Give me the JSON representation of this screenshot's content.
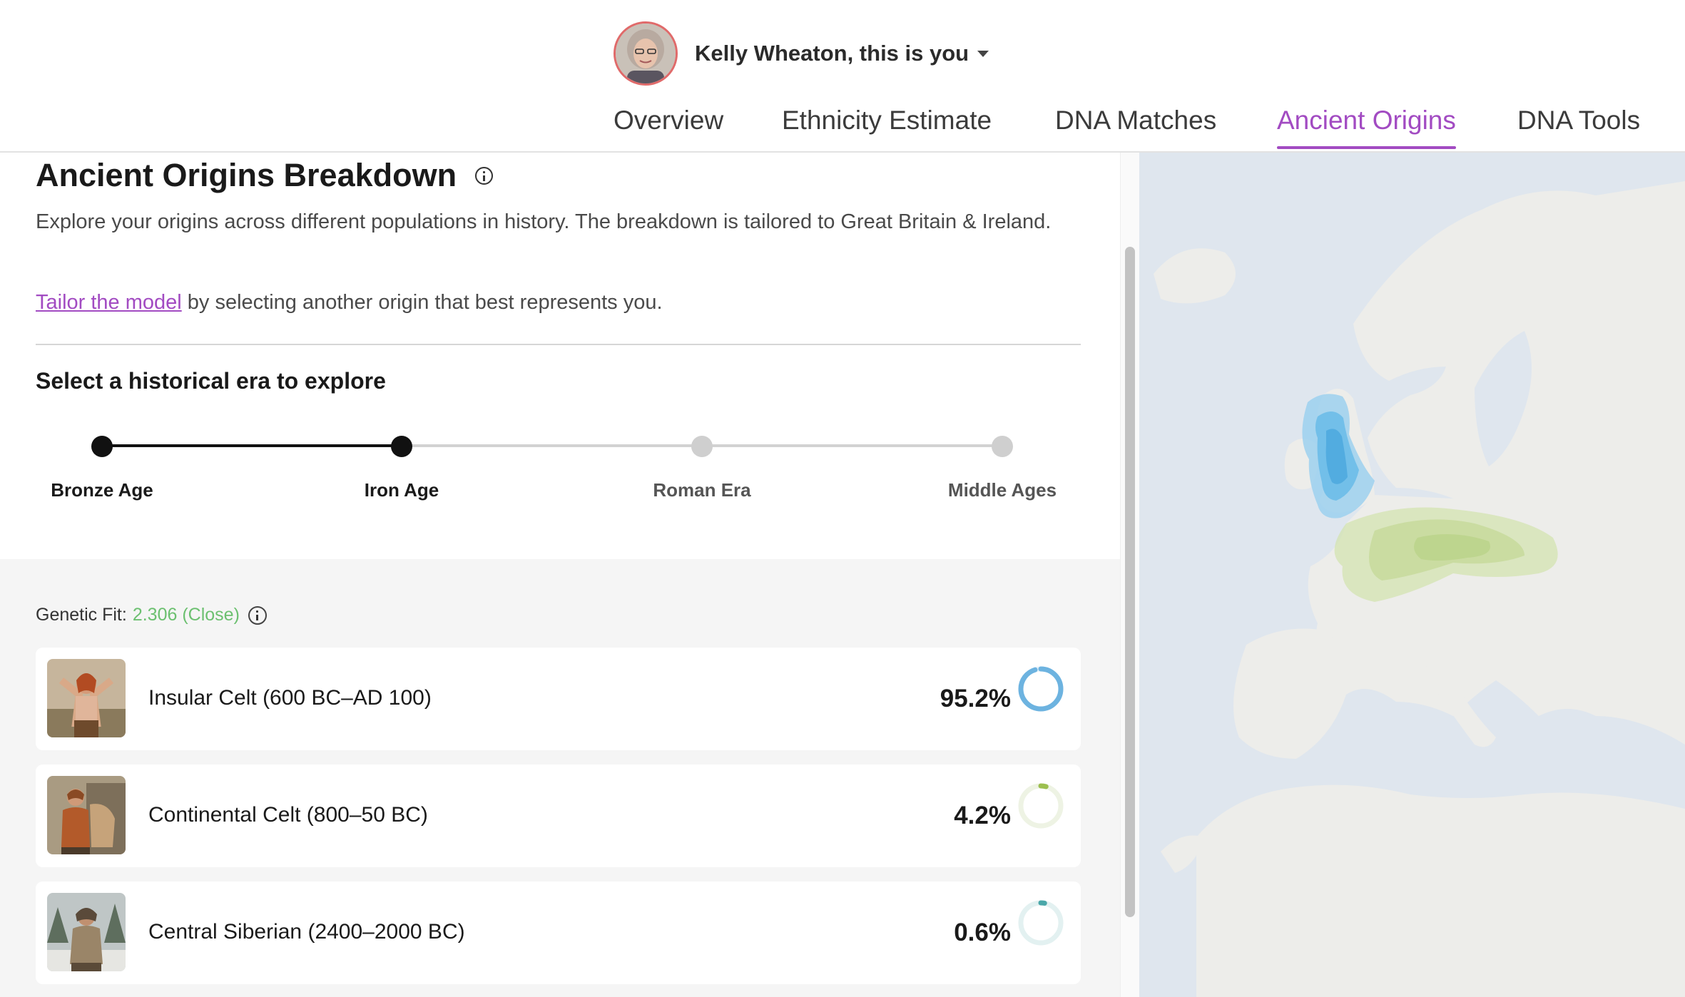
{
  "header": {
    "user_label": "Kelly Wheaton, this is you",
    "tabs": [
      {
        "label": "Overview",
        "active": false
      },
      {
        "label": "Ethnicity Estimate",
        "active": false
      },
      {
        "label": "DNA Matches",
        "active": false
      },
      {
        "label": "Ancient Origins",
        "active": true
      },
      {
        "label": "DNA Tools",
        "active": false
      }
    ],
    "accent_color": "#a24bc2"
  },
  "breakdown": {
    "title": "Ancient Origins Breakdown",
    "description": "Explore your origins across different populations in history. The breakdown is tailored to Great Britain & Ireland.",
    "tailor_link": "Tailor the model",
    "tailor_rest": " by selecting another origin that best represents you.",
    "era_heading": "Select a historical era to explore",
    "eras": [
      {
        "label": "Bronze Age",
        "reached": true
      },
      {
        "label": "Iron Age",
        "reached": true,
        "selected": true
      },
      {
        "label": "Roman Era",
        "reached": false
      },
      {
        "label": "Middle Ages",
        "reached": false
      }
    ]
  },
  "results": {
    "genetic_fit_label": "Genetic Fit:",
    "genetic_fit_value": "2.306 (Close)",
    "fit_color": "#6cc070",
    "origins": [
      {
        "name": "Insular Celt (600 BC–AD 100)",
        "percent_label": "95.2%",
        "percent": 95.2,
        "color": "#6db3e0",
        "track": "#e3f1fa"
      },
      {
        "name": "Continental Celt (800–50 BC)",
        "percent_label": "4.2%",
        "percent": 4.2,
        "color": "#9cbf4f",
        "track": "#eef3e4"
      },
      {
        "name": "Central Siberian (2400–2000 BC)",
        "percent_label": "0.6%",
        "percent": 0.6,
        "color": "#4aa7a9",
        "track": "#e3f1f1"
      }
    ]
  },
  "map": {
    "land_color": "#ededea",
    "water_color": "#dfe6ee",
    "regions": [
      {
        "name": "Insular Celt",
        "color": "#5aafdf"
      },
      {
        "name": "Continental Celt",
        "color": "#c5d99a"
      }
    ]
  }
}
